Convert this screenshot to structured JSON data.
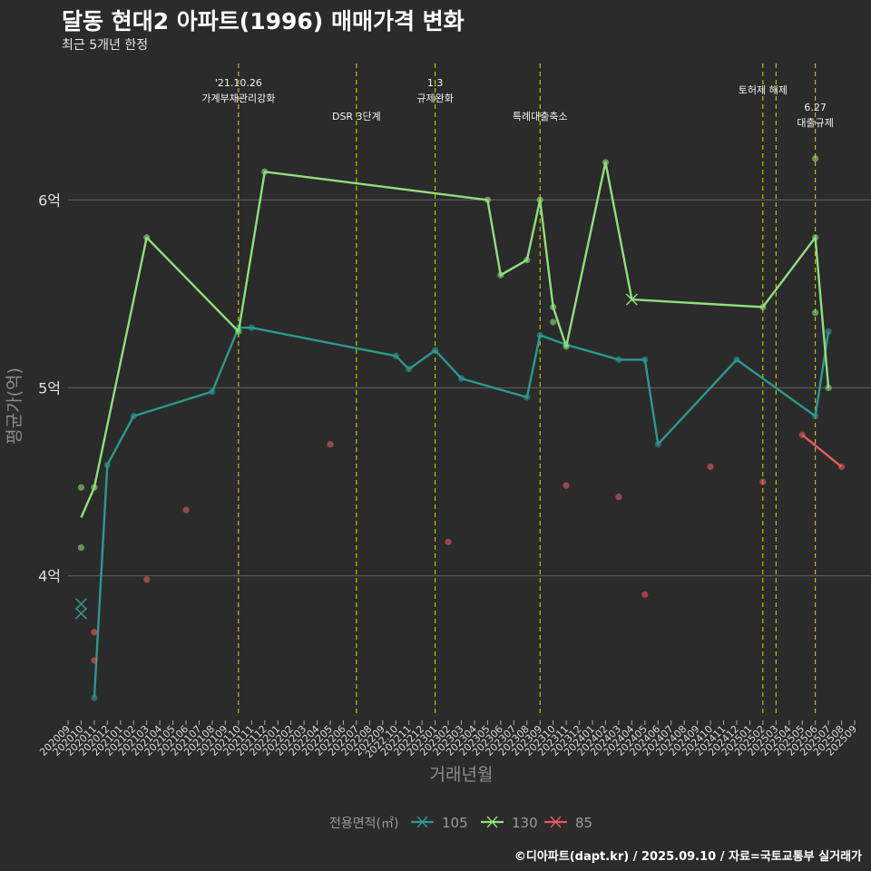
{
  "title": "달동 현대2 아파트(1996) 매매가격 변화",
  "subtitle": "최근 5개년 한정",
  "caption": "©디아파트(dapt.kr) / 2025.09.10 / 자료=국토교통부 실거래가",
  "colors": {
    "background": "#2b2b2b",
    "grid": "#5a5a5a",
    "event_line": "#d8e000",
    "s105": "#2a9a8f",
    "s130": "#8ee07a",
    "s85": "#e65c5c"
  },
  "chart_data": {
    "type": "line",
    "xlabel": "거래년월",
    "ylabel": "평균가(억)",
    "ylim": [
      3.25,
      6.75
    ],
    "yticks": [
      {
        "value": 4,
        "label": "4억"
      },
      {
        "value": 5,
        "label": "5억"
      },
      {
        "value": 6,
        "label": "6억"
      }
    ],
    "x_categories": [
      "202009",
      "202010",
      "202011",
      "202012",
      "202101",
      "202102",
      "202103",
      "202104",
      "202105",
      "202106",
      "202107",
      "202108",
      "202109",
      "202110",
      "202111",
      "202112",
      "202201",
      "202202",
      "202203",
      "202204",
      "202205",
      "202206",
      "202207",
      "202208",
      "202209",
      "202210",
      "202211",
      "202212",
      "202301",
      "202302",
      "202303",
      "202304",
      "202305",
      "202306",
      "202307",
      "202308",
      "202309",
      "202310",
      "202311",
      "202312",
      "202401",
      "202402",
      "202403",
      "202404",
      "202405",
      "202406",
      "202407",
      "202408",
      "202409",
      "202410",
      "202411",
      "202412",
      "202501",
      "202502",
      "202503",
      "202504",
      "202505",
      "202506",
      "202507",
      "202508",
      "202509"
    ],
    "x_tick_labels": [
      "202009",
      "202010",
      "202011",
      "202012",
      "202101",
      "202102",
      "202103",
      "202104",
      "202105",
      "202106",
      "202107",
      "202108",
      "202109",
      "202110",
      "202111",
      "202112",
      "202201",
      "202202",
      "202203",
      "202204",
      "202205",
      "202206",
      "202207",
      "202208",
      "202209",
      "2022.10",
      "202211",
      "202212",
      "202301",
      "202302",
      "202303",
      "202304",
      "202305",
      "202306",
      "202307",
      "202308",
      "202309",
      "202310",
      "202311",
      "202312",
      "202401",
      "202402",
      "202403",
      "202404",
      "202405",
      "202406",
      "202407",
      "202408",
      "202409",
      "202410",
      "202411",
      "202412",
      "202501",
      "202502",
      "202503",
      "202504",
      "202505",
      "202506",
      "202507",
      "202508",
      "202509"
    ],
    "events": [
      {
        "x": "202110",
        "lines": [
          "'21.10.26",
          "가계부채관리강화"
        ],
        "row": 1
      },
      {
        "x": "202207",
        "lines": [
          "DSR 3단계"
        ],
        "row": 3
      },
      {
        "x": "202301",
        "lines": [
          "1.3",
          "규제완화"
        ],
        "row": 1
      },
      {
        "x": "202309",
        "lines": [
          "특례대출축소"
        ],
        "row": 3
      },
      {
        "x": "202502",
        "lines": [
          "토허제 해제"
        ],
        "row": 2
      },
      {
        "x": "202503",
        "lines": [],
        "row": 0
      },
      {
        "x": "202506",
        "lines": [
          "6.27",
          "대출규제"
        ],
        "row": 4
      }
    ],
    "series": [
      {
        "name": "105",
        "color": "#2a9a8f",
        "line": [
          [
            "202011",
            3.35
          ],
          [
            "202012",
            4.59
          ],
          [
            "202102",
            4.85
          ],
          [
            "202108",
            4.98
          ],
          [
            "202110",
            5.32
          ],
          [
            "202111",
            5.32
          ],
          [
            "202210",
            5.17
          ],
          [
            "202211",
            5.1
          ],
          [
            "202301",
            5.2
          ],
          [
            "202303",
            5.05
          ],
          [
            "202308",
            4.95
          ],
          [
            "202309",
            5.28
          ],
          [
            "202311",
            5.23
          ],
          [
            "202403",
            5.15
          ],
          [
            "202405",
            5.15
          ],
          [
            "202406",
            4.7
          ],
          [
            "202412",
            5.15
          ],
          [
            "202506",
            4.85
          ],
          [
            "202507",
            5.3
          ]
        ],
        "points": [
          [
            "202011",
            3.35
          ],
          [
            "202012",
            4.59
          ],
          [
            "202102",
            4.85
          ],
          [
            "202108",
            4.98
          ],
          [
            "202110",
            5.32
          ],
          [
            "202111",
            5.32
          ],
          [
            "202210",
            5.17
          ],
          [
            "202211",
            5.1
          ],
          [
            "202301",
            5.2
          ],
          [
            "202303",
            5.05
          ],
          [
            "202308",
            4.95
          ],
          [
            "202309",
            5.28
          ],
          [
            "202311",
            5.23
          ],
          [
            "202403",
            5.15
          ],
          [
            "202405",
            5.15
          ],
          [
            "202406",
            4.7
          ],
          [
            "202412",
            5.15
          ],
          [
            "202506",
            4.85
          ],
          [
            "202507",
            5.3
          ]
        ],
        "crosses": [
          [
            "202010",
            3.85
          ],
          [
            "202010",
            3.8
          ]
        ]
      },
      {
        "name": "130",
        "color": "#8ee07a",
        "line": [
          [
            "202010",
            4.31
          ],
          [
            "202011",
            4.47
          ],
          [
            "202103",
            5.8
          ],
          [
            "202110",
            5.3
          ],
          [
            "202112",
            6.15
          ],
          [
            "202305",
            6.0
          ],
          [
            "202306",
            5.6
          ],
          [
            "202308",
            5.68
          ],
          [
            "202309",
            6.0
          ],
          [
            "202310",
            5.43
          ],
          [
            "202311",
            5.22
          ],
          [
            "202402",
            6.2
          ],
          [
            "202404",
            5.47
          ],
          [
            "202502",
            5.43
          ],
          [
            "202506",
            5.8
          ],
          [
            "202507",
            5.0
          ]
        ],
        "points": [
          [
            "202010",
            4.47
          ],
          [
            "202010",
            4.15
          ],
          [
            "202011",
            4.47
          ],
          [
            "202103",
            5.8
          ],
          [
            "202110",
            5.3
          ],
          [
            "202112",
            6.15
          ],
          [
            "202305",
            6.0
          ],
          [
            "202306",
            5.6
          ],
          [
            "202308",
            5.68
          ],
          [
            "202309",
            6.0
          ],
          [
            "202310",
            5.43
          ],
          [
            "202310",
            5.35
          ],
          [
            "202311",
            5.22
          ],
          [
            "202402",
            6.2
          ],
          [
            "202502",
            5.43
          ],
          [
            "202506",
            5.8
          ],
          [
            "202506",
            5.4
          ],
          [
            "202506",
            6.22
          ],
          [
            "202507",
            5.0
          ]
        ],
        "crosses": [
          [
            "202404",
            5.47
          ]
        ]
      },
      {
        "name": "85",
        "color": "#e65c5c",
        "line": [
          [
            "202505",
            4.75
          ],
          [
            "202508",
            4.58
          ]
        ],
        "points": [
          [
            "202011",
            3.7
          ],
          [
            "202011",
            3.55
          ],
          [
            "202103",
            3.98
          ],
          [
            "202106",
            4.35
          ],
          [
            "202205",
            4.7
          ],
          [
            "202302",
            4.18
          ],
          [
            "202311",
            4.48
          ],
          [
            "202403",
            4.42
          ],
          [
            "202405",
            3.9
          ],
          [
            "202410",
            4.58
          ],
          [
            "202502",
            4.5
          ],
          [
            "202505",
            4.75
          ],
          [
            "202508",
            4.58
          ]
        ],
        "crosses": []
      }
    ],
    "legend": {
      "title": "전용면적(㎡)",
      "position": "bottom",
      "items": [
        "105",
        "130",
        "85"
      ]
    },
    "grid": true
  }
}
